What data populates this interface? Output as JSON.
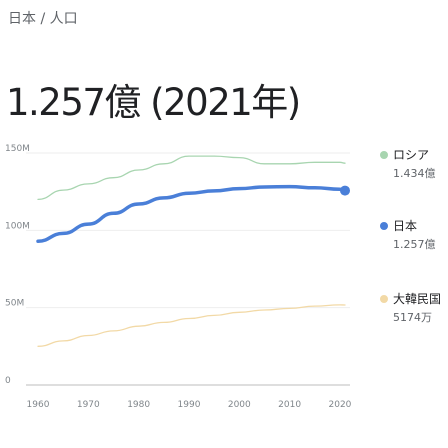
{
  "breadcrumb": "日本 / 人口",
  "headline": "1.257億 (2021年)",
  "colors": {
    "russia": "#a8d5b0",
    "japan": "#4a7fd8",
    "korea": "#f2d9a6",
    "grid": "#eeeeee",
    "baseline": "#bdbdbd"
  },
  "chart_data": {
    "type": "line",
    "title": "",
    "xlabel": "",
    "ylabel": "",
    "xlim": [
      1960,
      2021
    ],
    "ylim": [
      0,
      150
    ],
    "x_ticks": [
      "1960",
      "1970",
      "1980",
      "1990",
      "2000",
      "2010",
      "2020"
    ],
    "y_ticks": [
      "0",
      "50M",
      "100M",
      "150M"
    ],
    "grid": true,
    "legend": "right",
    "series": [
      {
        "name": "ロシア",
        "value_label": "1.434億",
        "color": "#a8d5b0",
        "x": [
          1960,
          1965,
          1970,
          1975,
          1980,
          1985,
          1990,
          1995,
          2000,
          2005,
          2010,
          2015,
          2020,
          2021
        ],
        "y": [
          120,
          126,
          130,
          134,
          139,
          143,
          148,
          148,
          147,
          143,
          143,
          144,
          144,
          143.4
        ]
      },
      {
        "name": "日本",
        "value_label": "1.257億",
        "color": "#4a7fd8",
        "x": [
          1960,
          1965,
          1970,
          1975,
          1980,
          1985,
          1990,
          1995,
          2000,
          2005,
          2010,
          2015,
          2020,
          2021
        ],
        "y": [
          93,
          98,
          104,
          111,
          117,
          121,
          124,
          125.5,
          127,
          128,
          128.3,
          127.5,
          126.5,
          125.7
        ]
      },
      {
        "name": "大韓民国",
        "value_label": "5174万",
        "color": "#f2d9a6",
        "x": [
          1960,
          1965,
          1970,
          1975,
          1980,
          1985,
          1990,
          1995,
          2000,
          2005,
          2010,
          2015,
          2020,
          2021
        ],
        "y": [
          25,
          28.5,
          32,
          35,
          38,
          40.5,
          43,
          45,
          47,
          48.5,
          49.5,
          51,
          51.8,
          51.74
        ]
      }
    ]
  }
}
